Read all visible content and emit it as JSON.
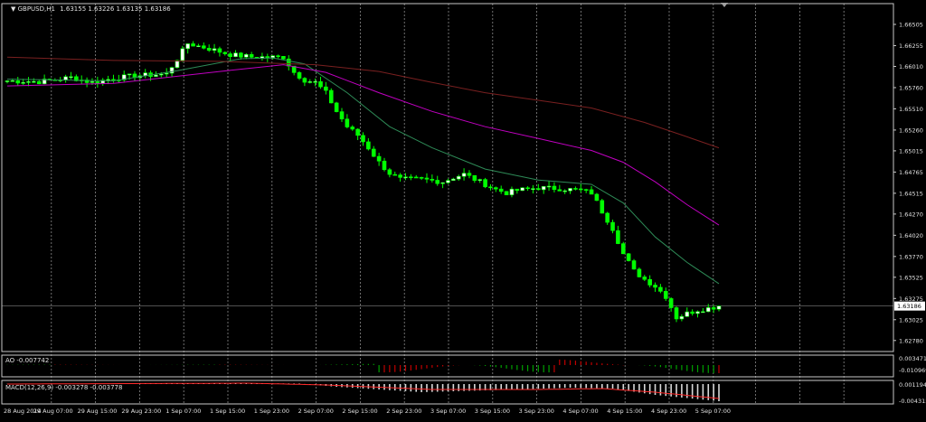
{
  "theme": {
    "background": "#000000",
    "axis": "#c8c8c8",
    "grid": "#8a8a8a",
    "text": "#e0e0e0",
    "bull": "#00ff00",
    "bear": "#ffffff",
    "ma_fast": "#2e8b57",
    "ma_mid": "#c000c0",
    "ma_slow": "#7a2020",
    "ao_up": "#00a000",
    "ao_down": "#c00000",
    "macd_hist": "#d8d8d8",
    "macd_signal": "#ff2a2a"
  },
  "header": {
    "symbol_tf": "GBPUSD,H1",
    "ohlc": "1.63155 1.63226 1.63135 1.63186"
  },
  "chart_data": [
    {
      "type": "candlestick",
      "title": "GBPUSD,H1",
      "y_ticks": [
        "1.66505",
        "1.66255",
        "1.66010",
        "1.65760",
        "1.65510",
        "1.65260",
        "1.65015",
        "1.64765",
        "1.64515",
        "1.64270",
        "1.64020",
        "1.63770",
        "1.63525",
        "1.63275",
        "1.63025",
        "1.62780"
      ],
      "current_price": "1.63186",
      "ylim": [
        1.6265,
        1.6675
      ],
      "x_labels": [
        "28 Aug 2014",
        "29 Aug 07:00",
        "29 Aug 15:00",
        "29 Aug 23:00",
        "1 Sep 07:00",
        "1 Sep 15:00",
        "1 Sep 23:00",
        "2 Sep 07:00",
        "2 Sep 15:00",
        "2 Sep 23:00",
        "3 Sep 07:00",
        "3 Sep 15:00",
        "3 Sep 23:00",
        "4 Sep 07:00",
        "4 Sep 15:00",
        "4 Sep 23:00",
        "5 Sep 07:00"
      ],
      "close_path": [
        [
          0,
          1.6584
        ],
        [
          6,
          1.6583
        ],
        [
          12,
          1.6588
        ],
        [
          16,
          1.6582
        ],
        [
          20,
          1.6587
        ],
        [
          24,
          1.659
        ],
        [
          30,
          1.6592
        ],
        [
          34,
          1.6628
        ],
        [
          38,
          1.6622
        ],
        [
          42,
          1.6615
        ],
        [
          46,
          1.6612
        ],
        [
          50,
          1.6612
        ],
        [
          52,
          1.6612
        ],
        [
          54,
          1.6594
        ],
        [
          56,
          1.6585
        ],
        [
          58,
          1.6582
        ],
        [
          60,
          1.657
        ],
        [
          62,
          1.6548
        ],
        [
          64,
          1.653
        ],
        [
          66,
          1.652
        ],
        [
          68,
          1.6505
        ],
        [
          70,
          1.6488
        ],
        [
          72,
          1.6475
        ],
        [
          74,
          1.6468
        ],
        [
          78,
          1.6468
        ],
        [
          82,
          1.6465
        ],
        [
          84,
          1.647
        ],
        [
          86,
          1.6474
        ],
        [
          88,
          1.6468
        ],
        [
          90,
          1.6462
        ],
        [
          92,
          1.6456
        ],
        [
          94,
          1.6452
        ],
        [
          96,
          1.6455
        ],
        [
          100,
          1.6458
        ],
        [
          104,
          1.6457
        ],
        [
          108,
          1.6455
        ],
        [
          110,
          1.6452
        ],
        [
          112,
          1.643
        ],
        [
          114,
          1.641
        ],
        [
          116,
          1.638
        ],
        [
          118,
          1.636
        ],
        [
          120,
          1.635
        ],
        [
          122,
          1.6342
        ],
        [
          124,
          1.633
        ],
        [
          126,
          1.6305
        ],
        [
          128,
          1.631
        ],
        [
          130,
          1.6314
        ],
        [
          132,
          1.6316
        ],
        [
          134,
          1.63186
        ]
      ],
      "series": [
        {
          "name": "MA fast",
          "points": [
            [
              0,
              1.6586
            ],
            [
              20,
              1.6584
            ],
            [
              32,
              1.6596
            ],
            [
              44,
              1.661
            ],
            [
              50,
              1.6611
            ],
            [
              56,
              1.6604
            ],
            [
              64,
              1.657
            ],
            [
              72,
              1.653
            ],
            [
              80,
              1.6505
            ],
            [
              90,
              1.648
            ],
            [
              100,
              1.6467
            ],
            [
              110,
              1.6462
            ],
            [
              116,
              1.644
            ],
            [
              122,
              1.64
            ],
            [
              128,
              1.637
            ],
            [
              134,
              1.6345
            ]
          ]
        },
        {
          "name": "MA mid",
          "points": [
            [
              0,
              1.6578
            ],
            [
              20,
              1.6581
            ],
            [
              40,
              1.6595
            ],
            [
              52,
              1.6603
            ],
            [
              60,
              1.6594
            ],
            [
              70,
              1.657
            ],
            [
              80,
              1.6548
            ],
            [
              90,
              1.653
            ],
            [
              100,
              1.6516
            ],
            [
              110,
              1.6502
            ],
            [
              116,
              1.6488
            ],
            [
              122,
              1.6465
            ],
            [
              128,
              1.6438
            ],
            [
              134,
              1.6414
            ]
          ]
        },
        {
          "name": "MA slow",
          "points": [
            [
              0,
              1.6612
            ],
            [
              20,
              1.6608
            ],
            [
              40,
              1.6607
            ],
            [
              58,
              1.6603
            ],
            [
              70,
              1.6595
            ],
            [
              80,
              1.6582
            ],
            [
              90,
              1.657
            ],
            [
              100,
              1.6561
            ],
            [
              110,
              1.6552
            ],
            [
              120,
              1.6535
            ],
            [
              128,
              1.6518
            ],
            [
              134,
              1.6505
            ]
          ]
        }
      ]
    },
    {
      "type": "bar",
      "title": "AO -0.007742",
      "y_ticks": [
        "0.003471",
        "-0.010969"
      ],
      "note": "Awesome Oscillator histogram"
    },
    {
      "type": "bar",
      "title": "MACD(12,26,9) -0.003278 -0.003778",
      "y_ticks": [
        "0.001194",
        "-0.004315"
      ],
      "note": "MACD histogram with signal line"
    }
  ]
}
